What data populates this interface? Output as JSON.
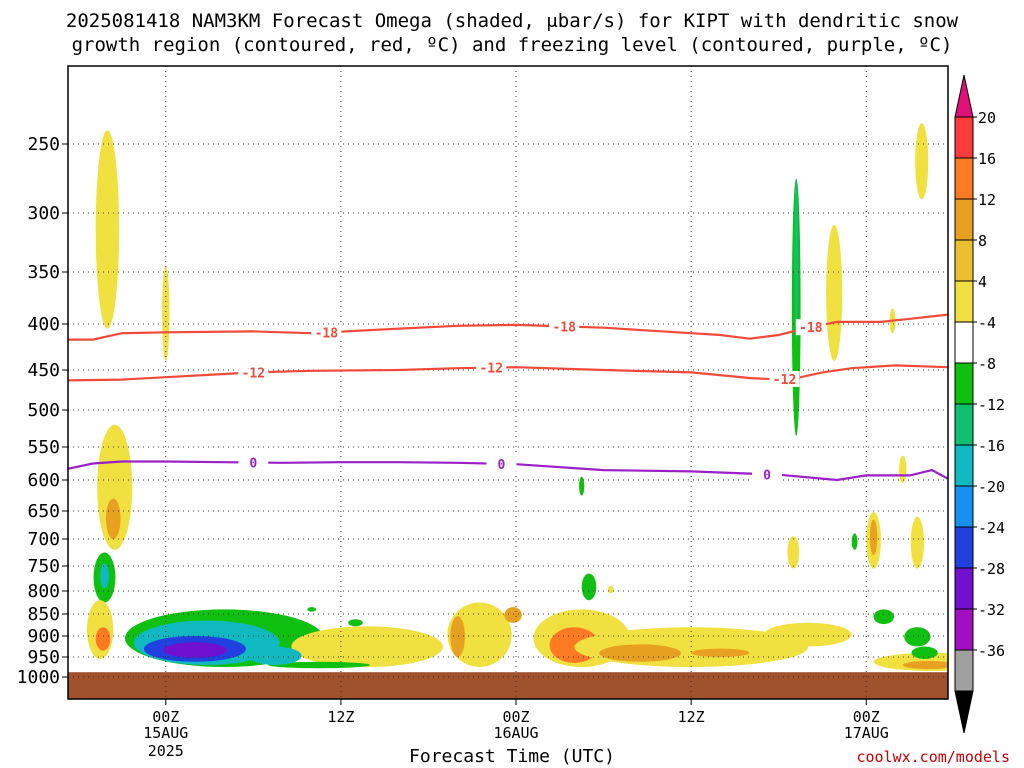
{
  "chart_data": {
    "type": "heatmap",
    "title_line1": "2025081418 NAM3KM Forecast Omega (shaded, μbar/s) for KIPT with dendritic snow",
    "title_line2": "growth region (contoured, red, ºC) and freezing level (contoured, purple, ºC)",
    "xlabel": "Forecast Time (UTC)",
    "ylabel": "",
    "pressure_levels": [
      250,
      300,
      350,
      400,
      450,
      500,
      550,
      600,
      650,
      700,
      750,
      800,
      850,
      900,
      950,
      1000
    ],
    "time_range_hours": [
      -6.7,
      53.6
    ],
    "x_ticks": [
      {
        "hour": 0,
        "label": "00Z",
        "sub1": "15AUG",
        "sub2": "2025"
      },
      {
        "hour": 12,
        "label": "12Z",
        "sub1": "",
        "sub2": ""
      },
      {
        "hour": 24,
        "label": "00Z",
        "sub1": "16AUG",
        "sub2": ""
      },
      {
        "hour": 36,
        "label": "12Z",
        "sub1": "",
        "sub2": ""
      },
      {
        "hour": 48,
        "label": "00Z",
        "sub1": "17AUG",
        "sub2": ""
      }
    ],
    "colorbar": {
      "labels": [
        "20",
        "16",
        "12",
        "8",
        "4",
        "-4",
        "-8",
        "-12",
        "-16",
        "-20",
        "-24",
        "-28",
        "-32",
        "-36"
      ],
      "colors": [
        "#ff3a3a",
        "#ff7a22",
        "#e8a020",
        "#e8c030",
        "#f0e040",
        "#ffffff",
        "#10c010",
        "#10c070",
        "#10b8c0",
        "#1890f0",
        "#2040e0",
        "#7010d0",
        "#a010c0",
        "#a0a0a0"
      ],
      "top_arrow_color": "#e0107a",
      "bottom_arrow_color": "#000000"
    },
    "contours": [
      {
        "name": "-18",
        "color": "#f04a3a",
        "label": "-18",
        "points": [
          [
            -6.7,
            417
          ],
          [
            -5,
            417
          ],
          [
            -3,
            410
          ],
          [
            0,
            409
          ],
          [
            6,
            408
          ],
          [
            10,
            410
          ],
          [
            16,
            405
          ],
          [
            20,
            402
          ],
          [
            24,
            401
          ],
          [
            30,
            404
          ],
          [
            36,
            410
          ],
          [
            38,
            412
          ],
          [
            40,
            416
          ],
          [
            42,
            412
          ],
          [
            44,
            404
          ],
          [
            46,
            398
          ],
          [
            49,
            398
          ],
          [
            51,
            395
          ],
          [
            53.6,
            391
          ]
        ],
        "label_hours": [
          11,
          27.3,
          44.2
        ]
      },
      {
        "name": "-12",
        "color": "#f04a3a",
        "label": "-12",
        "points": [
          [
            -6.7,
            463
          ],
          [
            -3,
            462
          ],
          [
            0,
            459
          ],
          [
            4,
            455
          ],
          [
            6,
            453
          ],
          [
            10,
            451
          ],
          [
            16,
            450
          ],
          [
            20,
            448
          ],
          [
            24,
            447
          ],
          [
            30,
            450
          ],
          [
            36,
            453
          ],
          [
            40,
            460
          ],
          [
            42,
            462
          ],
          [
            43.5,
            459
          ],
          [
            45,
            453
          ],
          [
            47,
            448
          ],
          [
            50,
            445
          ],
          [
            53.6,
            447
          ]
        ],
        "label_hours": [
          6,
          22.3,
          42.4
        ]
      },
      {
        "name": "0",
        "color": "#9a20c8",
        "label": "0",
        "points": [
          [
            -6.7,
            583
          ],
          [
            -5,
            575
          ],
          [
            -3,
            572
          ],
          [
            0,
            572
          ],
          [
            4,
            573
          ],
          [
            8,
            574
          ],
          [
            12,
            573
          ],
          [
            16,
            573
          ],
          [
            20,
            574
          ],
          [
            24,
            576
          ],
          [
            30,
            585
          ],
          [
            36,
            587
          ],
          [
            42,
            592
          ],
          [
            46,
            600
          ],
          [
            48,
            593
          ],
          [
            51,
            593
          ],
          [
            52.5,
            585
          ],
          [
            53.6,
            598
          ]
        ],
        "label_hours": [
          6,
          23,
          41.2
        ]
      }
    ],
    "omega_regions": [
      {
        "hour": -4,
        "p0": 240,
        "p1": 405,
        "w": 0.8,
        "value": 4
      },
      {
        "hour": 0,
        "p0": 345,
        "p1": 440,
        "w": 0.25,
        "value": 4
      },
      {
        "hour": -3.5,
        "p0": 520,
        "p1": 720,
        "w": 1.2,
        "value": 4
      },
      {
        "hour": -3.6,
        "p0": 630,
        "p1": 700,
        "w": 0.5,
        "value": 12
      },
      {
        "hour": -4.2,
        "p0": 725,
        "p1": 825,
        "w": 0.75,
        "value": -8
      },
      {
        "hour": -4.2,
        "p0": 745,
        "p1": 795,
        "w": 0.3,
        "value": -16
      },
      {
        "hour": -4.5,
        "p0": 820,
        "p1": 955,
        "w": 0.9,
        "value": 4
      },
      {
        "hour": -4.3,
        "p0": 880,
        "p1": 935,
        "w": 0.5,
        "value": 16
      },
      {
        "hour": 4,
        "p0": 840,
        "p1": 975,
        "w": 6.8,
        "value": -8
      },
      {
        "hour": 2.8,
        "p0": 865,
        "p1": 970,
        "w": 5.0,
        "value": -16
      },
      {
        "hour": 2,
        "p0": 900,
        "p1": 962,
        "w": 3.5,
        "value": -24
      },
      {
        "hour": 2,
        "p0": 915,
        "p1": 952,
        "w": 2.2,
        "value": -28
      },
      {
        "hour": 13.8,
        "p0": 878,
        "p1": 975,
        "w": 5.2,
        "value": 4
      },
      {
        "hour": 10.5,
        "p0": 962,
        "p1": 978,
        "w": 3.5,
        "value": -8
      },
      {
        "hour": 10,
        "p0": 835,
        "p1": 845,
        "w": 0.3,
        "value": -8
      },
      {
        "hour": 13,
        "p0": 862,
        "p1": 878,
        "w": 0.5,
        "value": -8
      },
      {
        "hour": 21.5,
        "p0": 825,
        "p1": 975,
        "w": 2.2,
        "value": 4
      },
      {
        "hour": 20,
        "p0": 855,
        "p1": 950,
        "w": 0.5,
        "value": 12
      },
      {
        "hour": 23.8,
        "p0": 835,
        "p1": 870,
        "w": 0.6,
        "value": 12
      },
      {
        "hour": 28.5,
        "p0": 840,
        "p1": 975,
        "w": 3.3,
        "value": 4
      },
      {
        "hour": 28,
        "p0": 880,
        "p1": 965,
        "w": 1.7,
        "value": 16
      },
      {
        "hour": 36,
        "p0": 880,
        "p1": 975,
        "w": 8,
        "value": 4
      },
      {
        "hour": 32.5,
        "p0": 920,
        "p1": 962,
        "w": 2.8,
        "value": 12
      },
      {
        "hour": 44,
        "p0": 870,
        "p1": 925,
        "w": 3,
        "value": 4
      },
      {
        "hour": 38,
        "p0": 930,
        "p1": 950,
        "w": 2,
        "value": 12
      },
      {
        "hour": 29,
        "p0": 765,
        "p1": 820,
        "w": 0.5,
        "value": -8
      },
      {
        "hour": 7.5,
        "p0": 925,
        "p1": 970,
        "w": 1.8,
        "value": -16
      },
      {
        "hour": 43.2,
        "p0": 275,
        "p1": 535,
        "w": 0.3,
        "value": -8
      },
      {
        "hour": 43.2,
        "p0": 275,
        "p1": 420,
        "w": 0.12,
        "value": -12
      },
      {
        "hour": 45.8,
        "p0": 310,
        "p1": 440,
        "w": 0.55,
        "value": 4
      },
      {
        "hour": 51.8,
        "p0": 235,
        "p1": 290,
        "w": 0.45,
        "value": 4
      },
      {
        "hour": 48.5,
        "p0": 652,
        "p1": 755,
        "w": 0.5,
        "value": 4
      },
      {
        "hour": 48.5,
        "p0": 665,
        "p1": 730,
        "w": 0.25,
        "value": 12
      },
      {
        "hour": 43,
        "p0": 695,
        "p1": 755,
        "w": 0.4,
        "value": 4
      },
      {
        "hour": 51.5,
        "p0": 660,
        "p1": 755,
        "w": 0.45,
        "value": 4
      },
      {
        "hour": 52.5,
        "p0": 940,
        "p1": 985,
        "w": 4,
        "value": 4
      },
      {
        "hour": 52.3,
        "p0": 960,
        "p1": 980,
        "w": 1.8,
        "value": 12
      },
      {
        "hour": 49.2,
        "p0": 840,
        "p1": 873,
        "w": 0.7,
        "value": -8
      },
      {
        "hour": 51.5,
        "p0": 880,
        "p1": 925,
        "w": 0.9,
        "value": -8
      },
      {
        "hour": 52,
        "p0": 925,
        "p1": 955,
        "w": 0.9,
        "value": -8
      },
      {
        "hour": 49.8,
        "p0": 385,
        "p1": 410,
        "w": 0.2,
        "value": 4
      },
      {
        "hour": 50.5,
        "p0": 563,
        "p1": 605,
        "w": 0.25,
        "value": 4
      },
      {
        "hour": 47.2,
        "p0": 690,
        "p1": 720,
        "w": 0.2,
        "value": -8
      },
      {
        "hour": 30.5,
        "p0": 790,
        "p1": 805,
        "w": 0.2,
        "value": 4
      },
      {
        "hour": 28.5,
        "p0": 595,
        "p1": 625,
        "w": 0.18,
        "value": -8
      }
    ],
    "ground_color": "#a0522d",
    "ground_top_pressure": 988,
    "grid": true
  },
  "credit": "coolwx.com/models"
}
